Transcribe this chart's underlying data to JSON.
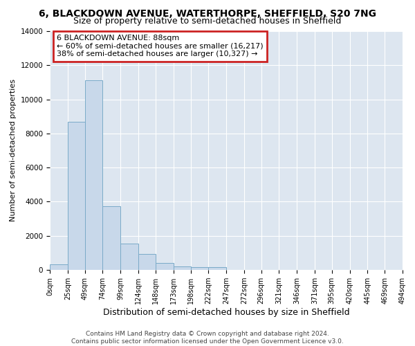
{
  "title1": "6, BLACKDOWN AVENUE, WATERTHORPE, SHEFFIELD, S20 7NG",
  "title2": "Size of property relative to semi-detached houses in Sheffield",
  "xlabel": "Distribution of semi-detached houses by size in Sheffield",
  "ylabel": "Number of semi-detached properties",
  "property_size": 88,
  "annotation_title": "6 BLACKDOWN AVENUE: 88sqm",
  "annotation_line1": "← 60% of semi-detached houses are smaller (16,217)",
  "annotation_line2": "38% of semi-detached houses are larger (10,327) →",
  "bar_color": "#c8d8ea",
  "bar_edge_color": "#7aaac8",
  "annotation_box_color": "#ffffff",
  "annotation_box_edge": "#cc2222",
  "bin_edges": [
    0,
    25,
    49,
    74,
    99,
    124,
    148,
    173,
    198,
    222,
    247,
    272,
    296,
    321,
    346,
    371,
    395,
    420,
    445,
    469,
    494
  ],
  "bar_heights": [
    310,
    8700,
    11100,
    3750,
    1550,
    950,
    400,
    200,
    150,
    150,
    0,
    0,
    0,
    0,
    0,
    0,
    0,
    0,
    0,
    0
  ],
  "ylim": [
    0,
    14000
  ],
  "background_color": "#dde6f0",
  "footer_text": "Contains HM Land Registry data © Crown copyright and database right 2024.\nContains public sector information licensed under the Open Government Licence v3.0.",
  "tick_labels": [
    "0sqm",
    "25sqm",
    "49sqm",
    "74sqm",
    "99sqm",
    "124sqm",
    "148sqm",
    "173sqm",
    "198sqm",
    "222sqm",
    "247sqm",
    "272sqm",
    "296sqm",
    "321sqm",
    "346sqm",
    "371sqm",
    "395sqm",
    "420sqm",
    "445sqm",
    "469sqm",
    "494sqm"
  ],
  "yticks": [
    0,
    2000,
    4000,
    6000,
    8000,
    10000,
    12000,
    14000
  ],
  "title1_fontsize": 10,
  "title2_fontsize": 9,
  "xlabel_fontsize": 9,
  "ylabel_fontsize": 8,
  "tick_fontsize": 7,
  "footer_fontsize": 6.5,
  "annotation_fontsize": 8
}
